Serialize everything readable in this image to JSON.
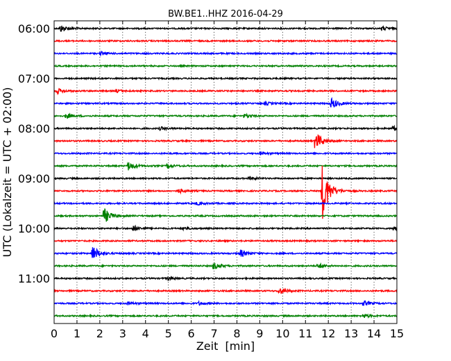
{
  "chart_data": {
    "type": "line",
    "title": "BW.BE1..HHZ 2016-04-29",
    "xlabel": "Zeit  [min]",
    "ylabel": "UTC (Lokalzeit = UTC + 02:00)",
    "xlim": [
      0,
      15
    ],
    "x_ticks": [
      0,
      1,
      2,
      3,
      4,
      5,
      6,
      7,
      8,
      9,
      10,
      11,
      12,
      13,
      14,
      15
    ],
    "y_tick_labels": [
      "06:00",
      "07:00",
      "08:00",
      "09:00",
      "10:00",
      "11:00"
    ],
    "grid": "vertical dotted",
    "trace_interval_min": 15,
    "trace_colors": [
      "#000000",
      "#ff0000",
      "#0000ff",
      "#008000"
    ],
    "traces": [
      {
        "start": "06:00",
        "events": [
          {
            "t": 0.25,
            "amp": 0.35
          },
          {
            "t": 14.3,
            "amp": 0.2
          }
        ]
      },
      {
        "start": "06:15",
        "events": []
      },
      {
        "start": "06:30",
        "events": [
          {
            "t": 2.0,
            "amp": 0.15
          }
        ]
      },
      {
        "start": "06:45",
        "events": []
      },
      {
        "start": "07:00",
        "events": []
      },
      {
        "start": "07:15",
        "events": [
          {
            "t": 0.1,
            "amp": 0.25
          },
          {
            "t": 2.7,
            "amp": 0.15
          }
        ]
      },
      {
        "start": "07:30",
        "events": [
          {
            "t": 9.2,
            "amp": 0.15
          },
          {
            "t": 12.1,
            "amp": 0.55
          }
        ]
      },
      {
        "start": "07:45",
        "events": [
          {
            "t": 0.5,
            "amp": 0.25
          },
          {
            "t": 8.3,
            "amp": 0.2
          }
        ]
      },
      {
        "start": "08:00",
        "events": [
          {
            "t": 4.6,
            "amp": 0.15
          },
          {
            "t": 14.8,
            "amp": 0.2
          }
        ]
      },
      {
        "start": "08:15",
        "events": [
          {
            "t": 11.4,
            "amp": 1.0
          }
        ]
      },
      {
        "start": "08:30",
        "events": [
          {
            "t": 9.0,
            "amp": 0.15
          }
        ]
      },
      {
        "start": "08:45",
        "events": [
          {
            "t": 3.2,
            "amp": 0.45
          },
          {
            "t": 4.9,
            "amp": 0.2
          }
        ]
      },
      {
        "start": "09:00",
        "events": [
          {
            "t": 8.5,
            "amp": 0.15
          }
        ]
      },
      {
        "start": "09:15",
        "events": [
          {
            "t": 5.4,
            "amp": 0.2
          },
          {
            "t": 11.7,
            "amp": 3.0
          }
        ]
      },
      {
        "start": "09:30",
        "events": [
          {
            "t": 6.2,
            "amp": 0.15
          }
        ]
      },
      {
        "start": "09:45",
        "events": [
          {
            "t": 2.15,
            "amp": 0.8
          }
        ]
      },
      {
        "start": "10:00",
        "events": [
          {
            "t": 3.4,
            "amp": 0.3
          },
          {
            "t": 5.6,
            "amp": 0.15
          },
          {
            "t": 14.8,
            "amp": 0.2
          }
        ]
      },
      {
        "start": "10:15",
        "events": []
      },
      {
        "start": "10:30",
        "events": [
          {
            "t": 1.65,
            "amp": 0.8
          },
          {
            "t": 8.1,
            "amp": 0.4
          }
        ]
      },
      {
        "start": "10:45",
        "events": [
          {
            "t": 6.9,
            "amp": 0.4
          },
          {
            "t": 11.5,
            "amp": 0.25
          }
        ]
      },
      {
        "start": "11:00",
        "events": [
          {
            "t": 4.9,
            "amp": 0.15
          }
        ]
      },
      {
        "start": "11:15",
        "events": [
          {
            "t": 9.8,
            "amp": 0.35
          }
        ]
      },
      {
        "start": "11:30",
        "events": [
          {
            "t": 3.2,
            "amp": 0.15
          },
          {
            "t": 6.3,
            "amp": 0.15
          },
          {
            "t": 13.5,
            "amp": 0.25
          }
        ]
      },
      {
        "start": "11:45",
        "events": [
          {
            "t": 13.5,
            "amp": 0.2
          }
        ]
      }
    ]
  }
}
